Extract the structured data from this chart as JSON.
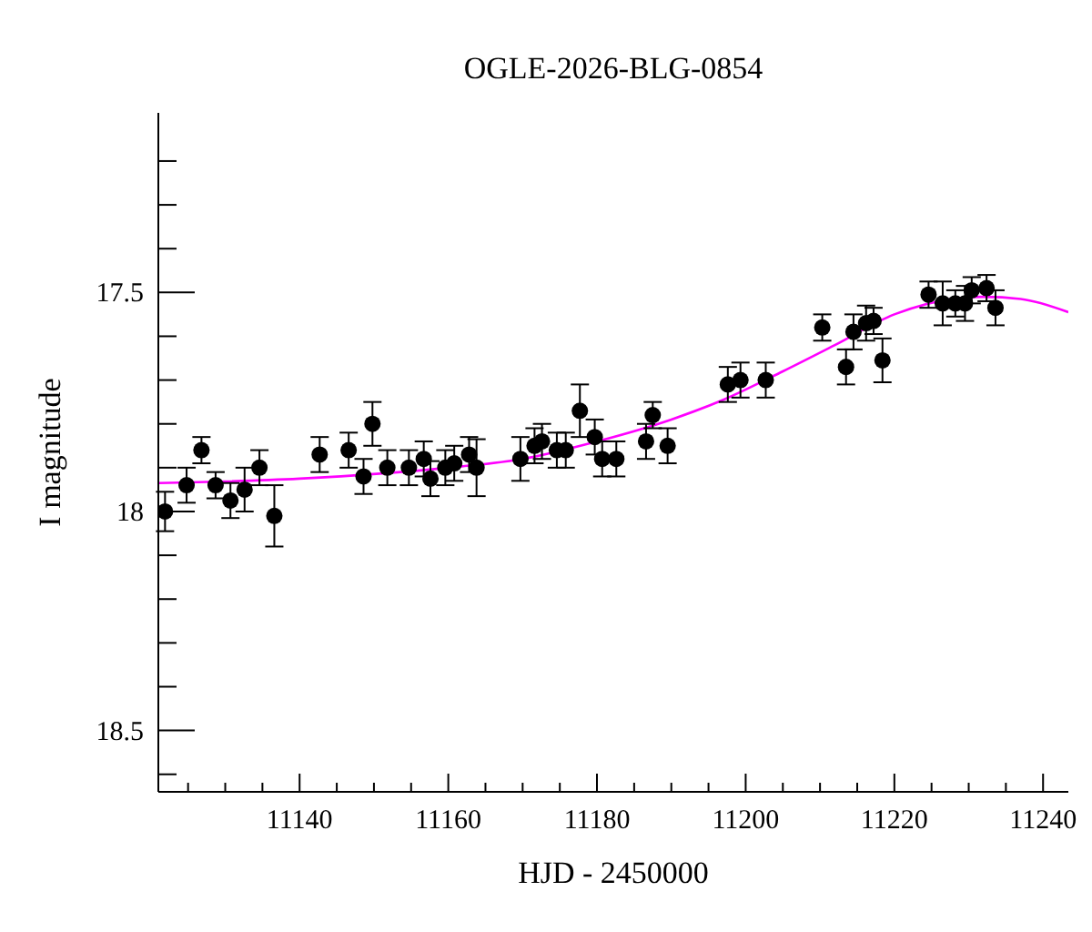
{
  "chart_data": {
    "type": "scatter",
    "title": "OGLE-2026-BLG-0854",
    "xlabel": "HJD - 2450000",
    "ylabel": "I magnitude",
    "marker": "circle",
    "grid": false,
    "xlim": [
      11121,
      11243.4
    ],
    "ylim": [
      18.64,
      17.09
    ],
    "xticks": [
      {
        "value": 11125,
        "label": null
      },
      {
        "value": 11130,
        "label": null
      },
      {
        "value": 11135,
        "label": null
      },
      11140,
      {
        "value": 11145,
        "label": null
      },
      {
        "value": 11150,
        "label": null
      },
      {
        "value": 11155,
        "label": null
      },
      11160,
      {
        "value": 11165,
        "label": null
      },
      {
        "value": 11170,
        "label": null
      },
      {
        "value": 11175,
        "label": null
      },
      11180,
      {
        "value": 11185,
        "label": null
      },
      {
        "value": 11190,
        "label": null
      },
      {
        "value": 11195,
        "label": null
      },
      11200,
      {
        "value": 11205,
        "label": null
      },
      {
        "value": 11210,
        "label": null
      },
      {
        "value": 11215,
        "label": null
      },
      11220,
      {
        "value": 11225,
        "label": null
      },
      {
        "value": 11230,
        "label": null
      },
      {
        "value": 11235,
        "label": null
      },
      11240
    ],
    "yticks": [
      {
        "value": 17.2,
        "label": null
      },
      {
        "value": 17.3,
        "label": null
      },
      {
        "value": 17.4,
        "label": null
      },
      17.5,
      {
        "value": 17.6,
        "label": null
      },
      {
        "value": 17.7,
        "label": null
      },
      {
        "value": 17.8,
        "label": null
      },
      {
        "value": 17.9,
        "label": null
      },
      18,
      {
        "value": 18.1,
        "label": null
      },
      {
        "value": 18.2,
        "label": null
      },
      {
        "value": 18.3,
        "label": null
      },
      {
        "value": 18.4,
        "label": null
      },
      18.5,
      {
        "value": 18.6,
        "label": null
      }
    ],
    "series": [
      {
        "type": "line",
        "marker": "none",
        "color": "#ff00ff",
        "x": [
          11121,
          11140,
          11160,
          11170,
          11180,
          11190,
          11197,
          11205,
          11212,
          11220,
          11226,
          11232,
          11237,
          11243.4
        ],
        "values": [
          17.935,
          17.925,
          17.9,
          17.88,
          17.84,
          17.79,
          17.745,
          17.68,
          17.62,
          17.55,
          17.52,
          17.51,
          17.515,
          17.545
        ]
      },
      {
        "color": "#000000",
        "x": [
          11121.9,
          11124.8,
          11126.8,
          11128.7,
          11130.7,
          11132.6,
          11134.6,
          11136.6,
          11142.7,
          11146.6,
          11148.6,
          11149.8,
          11151.8,
          11154.7,
          11156.7,
          11157.6,
          11159.6,
          11160.8,
          11162.8,
          11163.8,
          11169.7,
          11171.6,
          11172.6,
          11174.6,
          11175.8,
          11177.7,
          11179.7,
          11180.7,
          11182.6,
          11186.6,
          11187.5,
          11189.5,
          11197.6,
          11199.3,
          11202.7,
          11210.3,
          11213.5,
          11214.5,
          11216.2,
          11217.2,
          11218.4,
          11224.6,
          11226.5,
          11228.2,
          11229.5,
          11230.4,
          11232.4,
          11233.6
        ],
        "values": [
          18.0,
          17.94,
          17.86,
          17.94,
          17.975,
          17.95,
          17.9,
          18.01,
          17.87,
          17.86,
          17.92,
          17.8,
          17.9,
          17.9,
          17.88,
          17.925,
          17.9,
          17.89,
          17.87,
          17.9,
          17.88,
          17.85,
          17.84,
          17.86,
          17.86,
          17.77,
          17.83,
          17.88,
          17.88,
          17.84,
          17.78,
          17.85,
          17.71,
          17.7,
          17.7,
          17.58,
          17.67,
          17.59,
          17.57,
          17.565,
          17.655,
          17.505,
          17.525,
          17.525,
          17.525,
          17.495,
          17.49,
          17.535
        ],
        "errors": [
          0.045,
          0.04,
          0.03,
          0.03,
          0.04,
          0.05,
          0.04,
          0.07,
          0.04,
          0.04,
          0.04,
          0.05,
          0.04,
          0.04,
          0.04,
          0.04,
          0.04,
          0.04,
          0.04,
          0.065,
          0.05,
          0.04,
          0.04,
          0.04,
          0.04,
          0.06,
          0.04,
          0.04,
          0.04,
          0.04,
          0.03,
          0.04,
          0.04,
          0.04,
          0.04,
          0.03,
          0.04,
          0.04,
          0.04,
          0.03,
          0.05,
          0.03,
          0.05,
          0.03,
          0.04,
          0.03,
          0.03,
          0.04
        ]
      }
    ]
  }
}
